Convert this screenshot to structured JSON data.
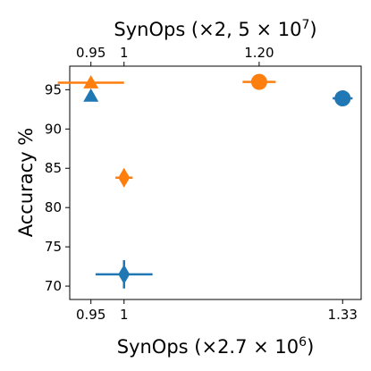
{
  "chart_data": {
    "type": "scatter",
    "xlabel": "SynOps (×2.7 × 10⁶)",
    "xlabel_parts": {
      "prefix": "SynOps (×2.7 × 10",
      "exp": "6",
      "suffix": ")"
    },
    "x2label": "SynOps (×2, 5 × 10⁷)",
    "x2label_parts": {
      "prefix": "SynOps (×2, 5 × 10",
      "exp": "7",
      "suffix": ")"
    },
    "ylabel": "Accuracy %",
    "xlim": [
      0.918,
      1.358
    ],
    "ylim": [
      68.3,
      98.0
    ],
    "x2_transform": {
      "equals_bottom_x_at": [
        [
          0.95,
          0.95
        ],
        [
          1.0,
          1.0
        ],
        [
          1.2,
          1.204
        ]
      ]
    },
    "x_ticks": [
      {
        "value": 0.95,
        "label": "0.95"
      },
      {
        "value": 1.0,
        "label": "1"
      },
      {
        "value": 1.33,
        "label": "1.33"
      }
    ],
    "x2_ticks": [
      {
        "value": 0.95,
        "label": "0.95"
      },
      {
        "value": 1.0,
        "label": "1"
      },
      {
        "value": 1.2,
        "label": "1.20"
      }
    ],
    "y_ticks": [
      {
        "value": 70,
        "label": "70"
      },
      {
        "value": 75,
        "label": "75"
      },
      {
        "value": 80,
        "label": "80"
      },
      {
        "value": 85,
        "label": "85"
      },
      {
        "value": 90,
        "label": "90"
      },
      {
        "value": 95,
        "label": "95"
      }
    ],
    "colors": {
      "blue": "#1f77b4",
      "orange": "#ff7f0e"
    },
    "series": [
      {
        "color": "blue",
        "marker": "circle",
        "x": 1.33,
        "y": 93.9,
        "xerr": 0.015,
        "yerr": 0.4
      },
      {
        "color": "orange",
        "marker": "circle",
        "x": 1.204,
        "y": 96.0,
        "xerr": 0.025,
        "yerr": 0.3
      },
      {
        "color": "blue",
        "marker": "triangle",
        "x": 0.95,
        "y": 94.2,
        "xerr": 0.0,
        "yerr": 0.3
      },
      {
        "color": "orange",
        "marker": "triangle",
        "x": 0.95,
        "y": 95.9,
        "xerr": 0.05,
        "yerr": 0.4
      },
      {
        "color": "orange",
        "marker": "diamond",
        "x": 1.0,
        "y": 83.8,
        "xerr": 0.013,
        "yerr": 1.1
      },
      {
        "color": "blue",
        "marker": "diamond",
        "x": 1.0,
        "y": 71.5,
        "xerr": 0.043,
        "yerr": 1.8
      }
    ],
    "grid": false,
    "legend": "none"
  }
}
